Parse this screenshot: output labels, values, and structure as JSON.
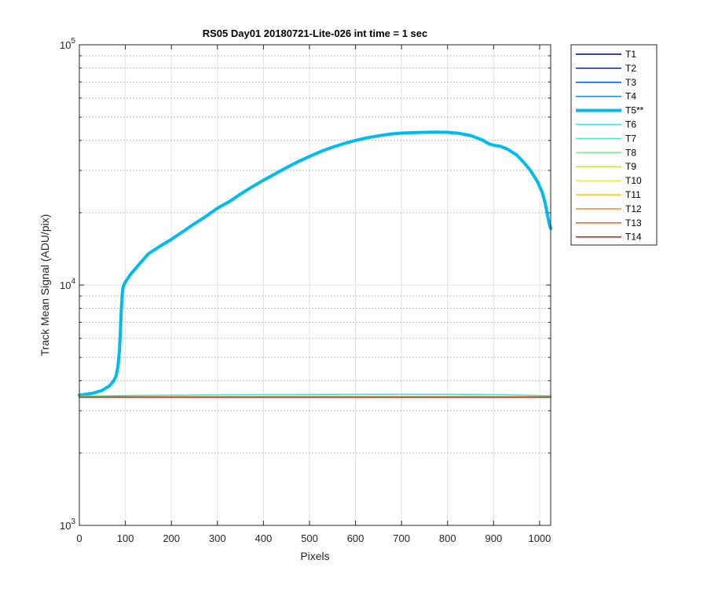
{
  "chart_data": {
    "type": "line",
    "title": "RS05 Day01 20180721-Lite-026 int time = 1 sec",
    "xlabel": "Pixels",
    "ylabel": "Track Mean Signal (ADU/pix)",
    "xlim": [
      0,
      1024
    ],
    "ylim": [
      1000,
      100000
    ],
    "yscale": "log",
    "x_ticks": [
      0,
      100,
      200,
      300,
      400,
      500,
      600,
      700,
      800,
      900,
      1000
    ],
    "x_tick_labels": [
      "0",
      "100",
      "200",
      "300",
      "400",
      "500",
      "600",
      "700",
      "800",
      "900",
      "1000"
    ],
    "y_ticks": [
      1000,
      10000,
      100000
    ],
    "y_tick_labels": [
      {
        "base": "10",
        "exp": "3"
      },
      {
        "base": "10",
        "exp": "4"
      },
      {
        "base": "10",
        "exp": "5"
      }
    ],
    "grid": true,
    "legend_position": "outside-top-right",
    "series": [
      {
        "name": "T1",
        "color": "#00008f",
        "line_width": 1.5,
        "x": [
          0,
          1024
        ],
        "y": [
          3420,
          3420
        ]
      },
      {
        "name": "T2",
        "color": "#0020c0",
        "line_width": 1.5,
        "x": [
          0,
          1024
        ],
        "y": [
          3420,
          3420
        ]
      },
      {
        "name": "T3",
        "color": "#0050e0",
        "line_width": 1.5,
        "x": [
          0,
          1024
        ],
        "y": [
          3420,
          3420
        ]
      },
      {
        "name": "T4",
        "color": "#1a8cf0",
        "line_width": 1.5,
        "x": [
          0,
          1024
        ],
        "y": [
          3420,
          3420
        ]
      },
      {
        "name": "T5**",
        "color": "#00bbee",
        "line_width": 4,
        "x": [
          0,
          30,
          50,
          65,
          75,
          80,
          84,
          87,
          89,
          91,
          93,
          95,
          100,
          110,
          125,
          150,
          175,
          200,
          225,
          250,
          275,
          300,
          325,
          350,
          375,
          400,
          425,
          450,
          475,
          500,
          525,
          550,
          575,
          600,
          625,
          650,
          675,
          700,
          725,
          750,
          775,
          800,
          825,
          850,
          875,
          890,
          900,
          915,
          930,
          950,
          965,
          980,
          995,
          1005,
          1012,
          1017,
          1021,
          1024
        ],
        "y": [
          3480,
          3550,
          3650,
          3800,
          4000,
          4200,
          4600,
          5300,
          6300,
          7800,
          9100,
          9800,
          10300,
          11000,
          11900,
          13500,
          14500,
          15500,
          16700,
          18000,
          19300,
          20900,
          22200,
          23900,
          25600,
          27300,
          29000,
          30800,
          32600,
          34300,
          36000,
          37500,
          38800,
          40000,
          41000,
          41800,
          42500,
          42900,
          43100,
          43200,
          43300,
          43200,
          42800,
          41900,
          40200,
          38700,
          38200,
          37800,
          36800,
          34800,
          32500,
          30000,
          27000,
          24500,
          22000,
          19500,
          18000,
          17200
        ]
      },
      {
        "name": "T6",
        "color": "#2ee6e6",
        "line_width": 1.5,
        "x": [
          0,
          100,
          200,
          300,
          400,
          500,
          600,
          700,
          800,
          900,
          1000,
          1024
        ],
        "y": [
          3450,
          3470,
          3480,
          3490,
          3500,
          3505,
          3510,
          3515,
          3510,
          3500,
          3470,
          3460
        ]
      },
      {
        "name": "T7",
        "color": "#4fe6c8",
        "line_width": 1.5,
        "x": [
          0,
          1024
        ],
        "y": [
          3420,
          3420
        ]
      },
      {
        "name": "T8",
        "color": "#7aea84",
        "line_width": 1.5,
        "x": [
          0,
          1024
        ],
        "y": [
          3420,
          3420
        ]
      },
      {
        "name": "T9",
        "color": "#c2ea3c",
        "line_width": 1.5,
        "x": [
          0,
          1024
        ],
        "y": [
          3420,
          3420
        ]
      },
      {
        "name": "T10",
        "color": "#ffee00",
        "line_width": 1.5,
        "x": [
          0,
          1024
        ],
        "y": [
          3420,
          3420
        ]
      },
      {
        "name": "T11",
        "color": "#ffc000",
        "line_width": 1.5,
        "x": [
          0,
          1024
        ],
        "y": [
          3420,
          3420
        ]
      },
      {
        "name": "T12",
        "color": "#ff8c00",
        "line_width": 1.5,
        "x": [
          0,
          1024
        ],
        "y": [
          3420,
          3420
        ]
      },
      {
        "name": "T13",
        "color": "#ff5a00",
        "line_width": 1.5,
        "x": [
          0,
          1024
        ],
        "y": [
          3420,
          3420
        ]
      },
      {
        "name": "T14",
        "color": "#e01000",
        "line_width": 1.5,
        "x": [
          0,
          1024
        ],
        "y": [
          3415,
          3415
        ]
      }
    ]
  }
}
